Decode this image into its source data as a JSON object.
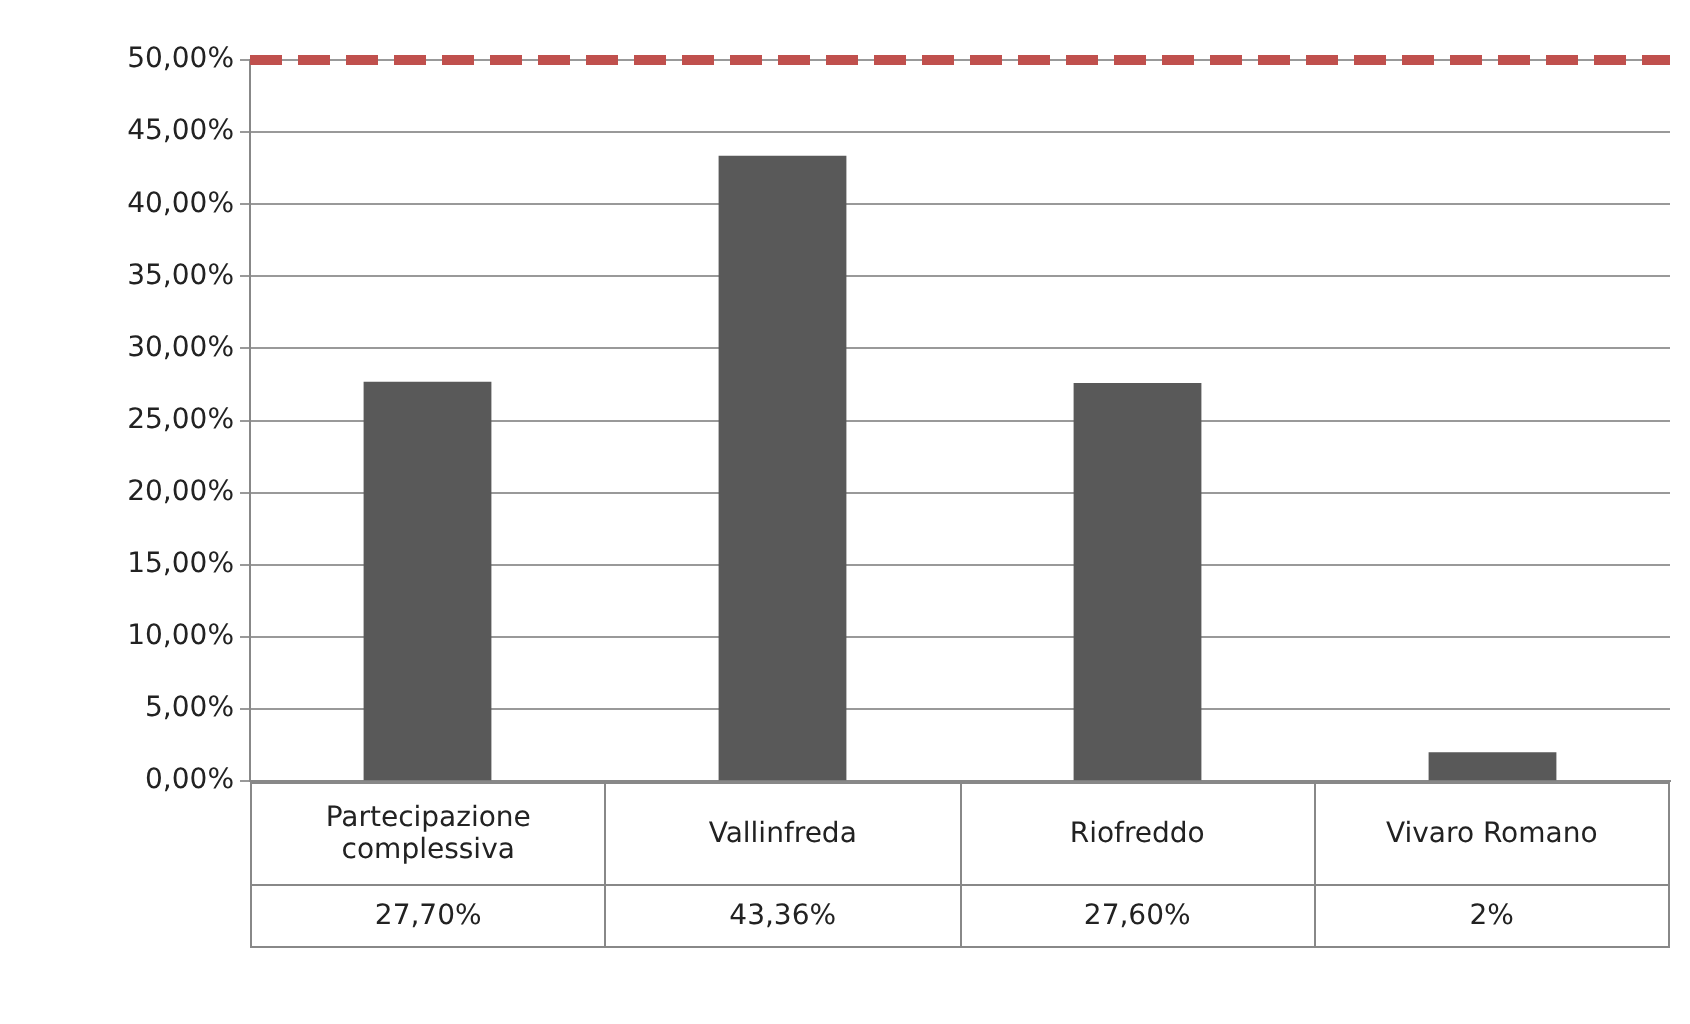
{
  "chart_data": {
    "type": "bar",
    "categories": [
      "Partecipazione complessiva",
      "Vallinfreda",
      "Riofreddo",
      "Vivaro Romano"
    ],
    "values": [
      27.7,
      43.36,
      27.6,
      2
    ],
    "value_labels": [
      "27,70%",
      "43,36%",
      "27,60%",
      "2%"
    ],
    "color": "#595959",
    "ylim": [
      0,
      50
    ],
    "yticks": [
      {
        "value": 0,
        "label": "0,00%"
      },
      {
        "value": 5,
        "label": "5,00%"
      },
      {
        "value": 10,
        "label": "10,00%"
      },
      {
        "value": 15,
        "label": "15,00%"
      },
      {
        "value": 20,
        "label": "20,00%"
      },
      {
        "value": 25,
        "label": "25,00%"
      },
      {
        "value": 30,
        "label": "30,00%"
      },
      {
        "value": 35,
        "label": "35,00%"
      },
      {
        "value": 40,
        "label": "40,00%"
      },
      {
        "value": 45,
        "label": "45,00%"
      },
      {
        "value": 50,
        "label": "50,00%"
      }
    ],
    "grid": "y",
    "legend": false,
    "ref_lines": [
      {
        "axis": "y",
        "value": 50,
        "color": "#c0504d",
        "line_style": "dashed"
      }
    ]
  }
}
